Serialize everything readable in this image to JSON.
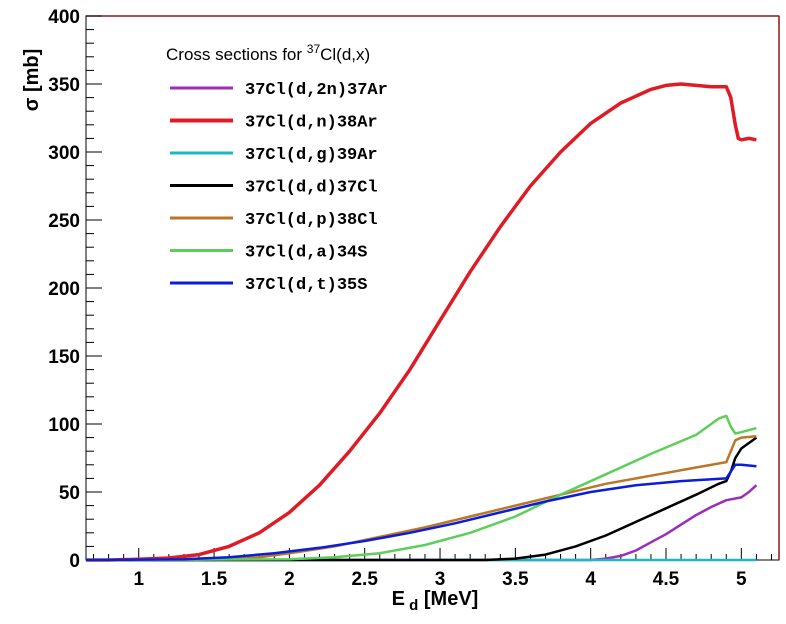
{
  "chart_data": {
    "type": "line",
    "title": "",
    "legend_title": {
      "prefix": "Cross sections for ",
      "superscript": "37",
      "suffix": "Cl(d,x)"
    },
    "xlabel": {
      "main": "E",
      "sub": "d",
      "unit": " [MeV]"
    },
    "ylabel": "σ [mb]",
    "xlim": [
      0.65,
      5.25
    ],
    "ylim": [
      0,
      400
    ],
    "x_ticks": [
      {
        "value": 1,
        "label": "1"
      },
      {
        "value": 1.5,
        "label": "1.5"
      },
      {
        "value": 2,
        "label": "2"
      },
      {
        "value": 2.5,
        "label": "2.5"
      },
      {
        "value": 3,
        "label": "3"
      },
      {
        "value": 3.5,
        "label": "3.5"
      },
      {
        "value": 4,
        "label": "4"
      },
      {
        "value": 4.5,
        "label": "4.5"
      },
      {
        "value": 5,
        "label": "5"
      }
    ],
    "y_ticks": [
      {
        "value": 0,
        "label": "0"
      },
      {
        "value": 50,
        "label": "50"
      },
      {
        "value": 100,
        "label": "100"
      },
      {
        "value": 150,
        "label": "150"
      },
      {
        "value": 200,
        "label": "200"
      },
      {
        "value": 250,
        "label": "250"
      },
      {
        "value": 300,
        "label": "300"
      },
      {
        "value": 350,
        "label": "350"
      },
      {
        "value": 400,
        "label": "400"
      }
    ],
    "x_minor_step": 0.1,
    "y_minor_step": 10,
    "grid": false,
    "legend_position": "top-left",
    "series": [
      {
        "name": "37Cl(d,2n)37Ar",
        "color": "#9b2db8",
        "points": [
          [
            0.65,
            0
          ],
          [
            4.0,
            0
          ],
          [
            4.1,
            1
          ],
          [
            4.2,
            3
          ],
          [
            4.3,
            7
          ],
          [
            4.4,
            13
          ],
          [
            4.5,
            19
          ],
          [
            4.6,
            26
          ],
          [
            4.7,
            33
          ],
          [
            4.8,
            39
          ],
          [
            4.9,
            44
          ],
          [
            5.0,
            46
          ],
          [
            5.05,
            50
          ],
          [
            5.1,
            55
          ]
        ]
      },
      {
        "name": "37Cl(d,n)38Ar",
        "color": "#dd1c25",
        "points": [
          [
            0.65,
            0
          ],
          [
            0.8,
            0
          ],
          [
            1.0,
            0.5
          ],
          [
            1.2,
            1.5
          ],
          [
            1.4,
            4
          ],
          [
            1.6,
            10
          ],
          [
            1.8,
            20
          ],
          [
            2.0,
            35
          ],
          [
            2.2,
            55
          ],
          [
            2.4,
            80
          ],
          [
            2.6,
            108
          ],
          [
            2.8,
            140
          ],
          [
            3.0,
            176
          ],
          [
            3.2,
            212
          ],
          [
            3.4,
            245
          ],
          [
            3.6,
            275
          ],
          [
            3.8,
            300
          ],
          [
            4.0,
            321
          ],
          [
            4.2,
            336
          ],
          [
            4.4,
            346
          ],
          [
            4.5,
            349
          ],
          [
            4.6,
            350
          ],
          [
            4.7,
            349
          ],
          [
            4.8,
            348
          ],
          [
            4.85,
            348
          ],
          [
            4.9,
            348
          ],
          [
            4.93,
            340
          ],
          [
            4.96,
            320
          ],
          [
            4.98,
            310
          ],
          [
            5.0,
            309
          ],
          [
            5.05,
            310
          ],
          [
            5.1,
            309
          ]
        ]
      },
      {
        "name": "37Cl(d,g)39Ar",
        "color": "#1ab9c4",
        "points": [
          [
            0.65,
            0
          ],
          [
            5.1,
            0
          ]
        ]
      },
      {
        "name": "37Cl(d,d)37Cl",
        "color": "#000000",
        "points": [
          [
            0.65,
            0
          ],
          [
            3.3,
            0
          ],
          [
            3.5,
            1
          ],
          [
            3.7,
            4
          ],
          [
            3.9,
            10
          ],
          [
            4.1,
            18
          ],
          [
            4.3,
            28
          ],
          [
            4.5,
            38
          ],
          [
            4.7,
            48
          ],
          [
            4.85,
            56
          ],
          [
            4.9,
            58
          ],
          [
            4.93,
            65
          ],
          [
            4.96,
            75
          ],
          [
            5.0,
            82
          ],
          [
            5.1,
            90
          ]
        ]
      },
      {
        "name": "37Cl(d,p)38Cl",
        "color": "#bb7628",
        "points": [
          [
            0.65,
            0
          ],
          [
            1.5,
            0.5
          ],
          [
            1.8,
            2
          ],
          [
            2.0,
            5
          ],
          [
            2.3,
            10
          ],
          [
            2.6,
            17
          ],
          [
            2.9,
            24
          ],
          [
            3.2,
            32
          ],
          [
            3.5,
            40
          ],
          [
            3.8,
            48
          ],
          [
            4.1,
            56
          ],
          [
            4.4,
            62
          ],
          [
            4.7,
            68
          ],
          [
            4.9,
            72
          ],
          [
            4.93,
            80
          ],
          [
            4.96,
            88
          ],
          [
            5.0,
            90
          ],
          [
            5.1,
            91
          ]
        ]
      },
      {
        "name": "37Cl(d,a)34S",
        "color": "#5ece5a",
        "points": [
          [
            0.65,
            0
          ],
          [
            2.0,
            0.5
          ],
          [
            2.3,
            2
          ],
          [
            2.6,
            5
          ],
          [
            2.9,
            11
          ],
          [
            3.2,
            20
          ],
          [
            3.5,
            32
          ],
          [
            3.8,
            48
          ],
          [
            4.1,
            63
          ],
          [
            4.4,
            78
          ],
          [
            4.7,
            92
          ],
          [
            4.85,
            104
          ],
          [
            4.9,
            106
          ],
          [
            4.93,
            98
          ],
          [
            4.96,
            93
          ],
          [
            5.0,
            94
          ],
          [
            5.1,
            97
          ]
        ]
      },
      {
        "name": "37Cl(d,t)35S",
        "color": "#0a1dd8",
        "points": [
          [
            0.65,
            0
          ],
          [
            1.3,
            0.5
          ],
          [
            1.6,
            2
          ],
          [
            1.9,
            5
          ],
          [
            2.2,
            9
          ],
          [
            2.5,
            14
          ],
          [
            2.8,
            20
          ],
          [
            3.1,
            27
          ],
          [
            3.4,
            35
          ],
          [
            3.7,
            43
          ],
          [
            4.0,
            50
          ],
          [
            4.3,
            55
          ],
          [
            4.6,
            58
          ],
          [
            4.9,
            60
          ],
          [
            4.93,
            65
          ],
          [
            4.96,
            70
          ],
          [
            5.0,
            70
          ],
          [
            5.1,
            69
          ]
        ]
      }
    ]
  }
}
